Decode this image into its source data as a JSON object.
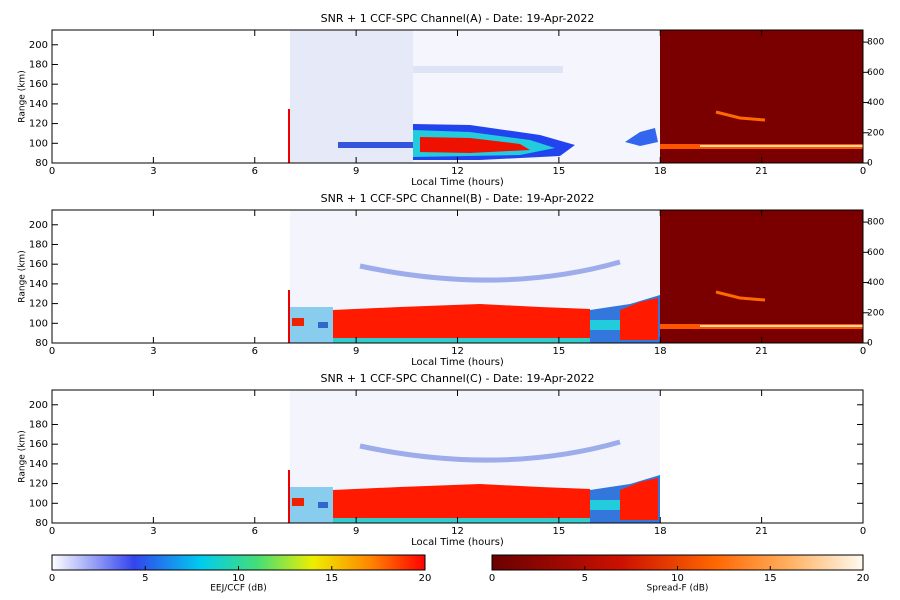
{
  "chart_data": [
    {
      "type": "heatmap",
      "title": "SNR + 1 CCF-SPC Channel(A) - Date: 19-Apr-2022",
      "xlabel": "Local Time (hours)",
      "ylabel": "Range (km)",
      "xlim": [
        0,
        24
      ],
      "xticks": [
        0,
        3,
        6,
        9,
        12,
        15,
        18,
        21,
        {
          "value": 24,
          "label": "0"
        }
      ],
      "ylim": [
        80,
        215
      ],
      "yticks": [
        80,
        100,
        120,
        140,
        160,
        180,
        200
      ],
      "y2lim": [
        0,
        880
      ],
      "y2ticks": [
        0,
        200,
        400,
        600,
        800
      ]
    },
    {
      "type": "heatmap",
      "title": "SNR + 1 CCF-SPC Channel(B) - Date: 19-Apr-2022",
      "xlabel": "Local Time (hours)",
      "ylabel": "Range (km)",
      "xlim": [
        0,
        24
      ],
      "xticks": [
        0,
        3,
        6,
        9,
        12,
        15,
        18,
        21,
        {
          "value": 24,
          "label": "0"
        }
      ],
      "ylim": [
        80,
        215
      ],
      "yticks": [
        80,
        100,
        120,
        140,
        160,
        180,
        200
      ],
      "y2lim": [
        0,
        880
      ],
      "y2ticks": [
        0,
        200,
        400,
        600,
        800
      ]
    },
    {
      "type": "heatmap",
      "title": "SNR + 1 CCF-SPC Channel(C) - Date: 19-Apr-2022",
      "xlabel": "Local Time (hours)",
      "ylabel": "Range (km)",
      "xlim": [
        0,
        24
      ],
      "xticks": [
        0,
        3,
        6,
        9,
        12,
        15,
        18,
        21,
        {
          "value": 24,
          "label": "0"
        }
      ],
      "ylim": [
        80,
        215
      ],
      "yticks": [
        80,
        100,
        120,
        140,
        160,
        180,
        200
      ]
    }
  ],
  "colorbars": [
    {
      "label": "EEJ/CCF (dB)",
      "lim": [
        0,
        20
      ],
      "ticks": [
        0,
        5,
        10,
        15,
        20
      ]
    },
    {
      "label": "Spread-F (dB)",
      "lim": [
        0,
        20
      ],
      "ticks": [
        0,
        5,
        10,
        15,
        20
      ]
    }
  ]
}
